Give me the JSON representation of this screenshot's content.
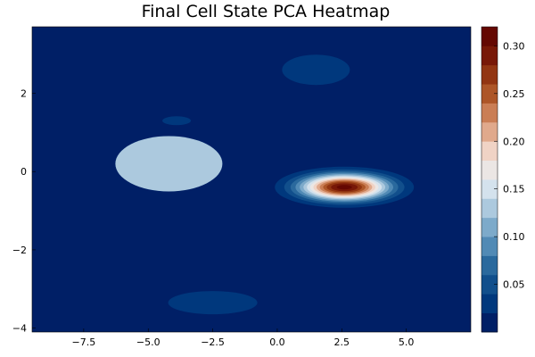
{
  "chart_data": {
    "type": "heatmap",
    "subtype": "filled-contour",
    "title": "Final Cell State PCA Heatmap",
    "xlabel": "",
    "ylabel": "",
    "xlim": [
      -9.5,
      7.5
    ],
    "ylim": [
      -4.1,
      3.7
    ],
    "x_ticks": [
      -7.5,
      -5.0,
      -2.5,
      0.0,
      2.5,
      5.0
    ],
    "x_tick_labels": [
      "−7.5",
      "−5.0",
      "−2.5",
      "0.0",
      "2.5",
      "5.0"
    ],
    "y_ticks": [
      -4,
      -2,
      0,
      2
    ],
    "y_tick_labels": [
      "−4",
      "−2",
      "0",
      "2"
    ],
    "colorbar": {
      "range": [
        0,
        0.32
      ],
      "levels": 16,
      "ticks": [
        0.05,
        0.1,
        0.15,
        0.2,
        0.25,
        0.3
      ],
      "tick_labels": [
        "0.05",
        "0.10",
        "0.15",
        "0.20",
        "0.25",
        "0.30"
      ],
      "colormap": [
        "#00125a",
        "#003a7f",
        "#1f5f96",
        "#5c94bc",
        "#a8c6dd",
        "#e8eff4",
        "#f1d1c2",
        "#d28a62",
        "#a54a1a",
        "#7a1a07",
        "#5a0000"
      ]
    },
    "peaks": [
      {
        "x": 2.6,
        "y": -0.4,
        "value": 0.31
      },
      {
        "x": -4.2,
        "y": 0.2,
        "value": 0.12
      },
      {
        "x": 1.5,
        "y": 2.6,
        "value": 0.035
      },
      {
        "x": -2.5,
        "y": -3.35,
        "value": 0.035
      },
      {
        "x": -3.9,
        "y": 1.3,
        "value": 0.02
      }
    ],
    "grid": false
  }
}
